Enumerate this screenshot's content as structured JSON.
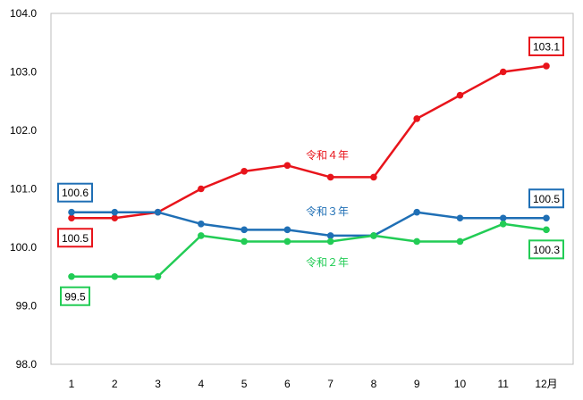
{
  "chart_data": {
    "type": "line",
    "categories": [
      "1",
      "2",
      "3",
      "4",
      "5",
      "6",
      "7",
      "8",
      "9",
      "10",
      "11",
      "12月"
    ],
    "ylim": [
      98.0,
      104.0
    ],
    "yticks": [
      "98.0",
      "99.0",
      "100.0",
      "101.0",
      "102.0",
      "103.0",
      "104.0"
    ],
    "grid": false,
    "legend": "none",
    "series": [
      {
        "name": "令和４年",
        "color": "#e8141b",
        "values": [
          100.5,
          100.5,
          100.6,
          101.0,
          101.3,
          101.4,
          101.2,
          101.2,
          102.2,
          102.6,
          103.0,
          103.1
        ]
      },
      {
        "name": "令和３年",
        "color": "#1f6fb5",
        "values": [
          100.6,
          100.6,
          100.6,
          100.4,
          100.3,
          100.3,
          100.2,
          100.2,
          100.6,
          100.5,
          100.5,
          100.5
        ]
      },
      {
        "name": "令和２年",
        "color": "#22cc55",
        "values": [
          99.5,
          99.5,
          99.5,
          100.2,
          100.1,
          100.1,
          100.1,
          100.2,
          100.1,
          100.1,
          100.4,
          100.3
        ]
      }
    ],
    "annotations": [
      {
        "text": "100.6",
        "series": 1,
        "point": 0,
        "side": "above",
        "color": "#1f6fb5"
      },
      {
        "text": "100.5",
        "series": 0,
        "point": 0,
        "side": "below",
        "color": "#e8141b"
      },
      {
        "text": "99.5",
        "series": 2,
        "point": 0,
        "side": "below",
        "color": "#22cc55"
      },
      {
        "text": "103.1",
        "series": 0,
        "point": 11,
        "side": "above",
        "color": "#e8141b"
      },
      {
        "text": "100.5",
        "series": 1,
        "point": 11,
        "side": "above",
        "color": "#1f6fb5"
      },
      {
        "text": "100.3",
        "series": 2,
        "point": 11,
        "side": "below",
        "color": "#22cc55"
      }
    ]
  }
}
